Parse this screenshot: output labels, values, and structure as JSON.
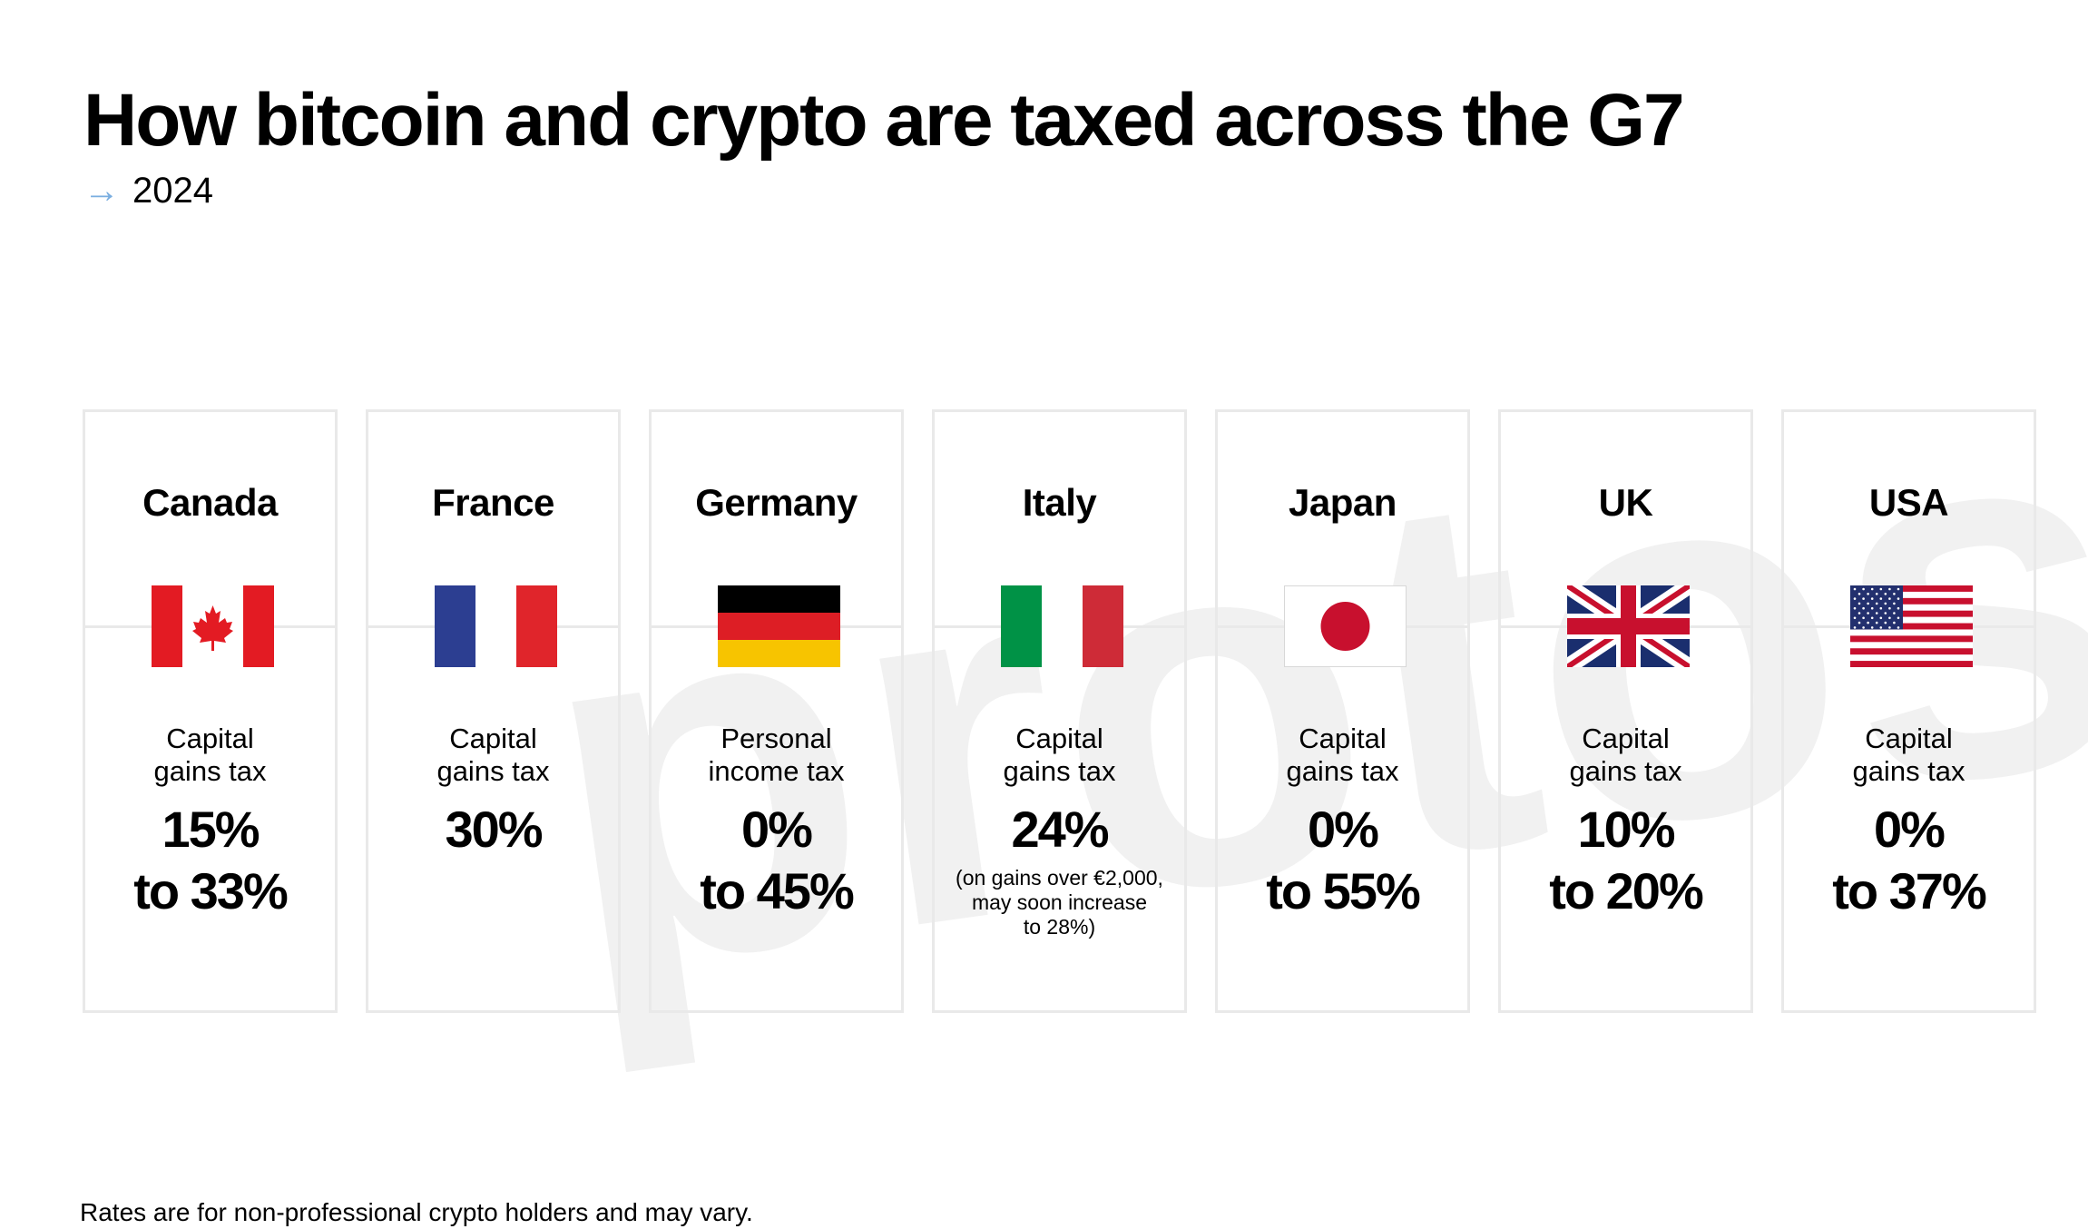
{
  "title": "How bitcoin and crypto are taxed across the G7",
  "subtitle": {
    "arrow_icon": "arrow-right-icon",
    "year": "2024"
  },
  "watermark": "protos",
  "colors": {
    "accent_arrow": "#7aaee0",
    "card_border": "#e9e9e9",
    "watermark": "#f1f1f1"
  },
  "countries": [
    {
      "name": "Canada",
      "flag_icon": "canada-flag-icon",
      "tax_type": [
        "Capital",
        "gains tax"
      ],
      "rate": [
        "15%",
        "to 33%"
      ],
      "note": []
    },
    {
      "name": "France",
      "flag_icon": "france-flag-icon",
      "tax_type": [
        "Capital",
        "gains tax"
      ],
      "rate": [
        "30%"
      ],
      "note": []
    },
    {
      "name": "Germany",
      "flag_icon": "germany-flag-icon",
      "tax_type": [
        "Personal",
        "income tax"
      ],
      "rate": [
        "0%",
        "to 45%"
      ],
      "note": []
    },
    {
      "name": "Italy",
      "flag_icon": "italy-flag-icon",
      "tax_type": [
        "Capital",
        "gains tax"
      ],
      "rate": [
        "24%"
      ],
      "note": [
        "(on gains over €2,000,",
        "may soon increase",
        "to 28%)"
      ]
    },
    {
      "name": "Japan",
      "flag_icon": "japan-flag-icon",
      "tax_type": [
        "Capital",
        "gains tax"
      ],
      "rate": [
        "0%",
        "to 55%"
      ],
      "note": []
    },
    {
      "name": "UK",
      "flag_icon": "uk-flag-icon",
      "tax_type": [
        "Capital",
        "gains tax"
      ],
      "rate": [
        "10%",
        "to 20%"
      ],
      "note": []
    },
    {
      "name": "USA",
      "flag_icon": "usa-flag-icon",
      "tax_type": [
        "Capital",
        "gains tax"
      ],
      "rate": [
        "0%",
        "to 37%"
      ],
      "note": []
    }
  ],
  "footnote": "Rates are for non-professional crypto holders and may vary."
}
